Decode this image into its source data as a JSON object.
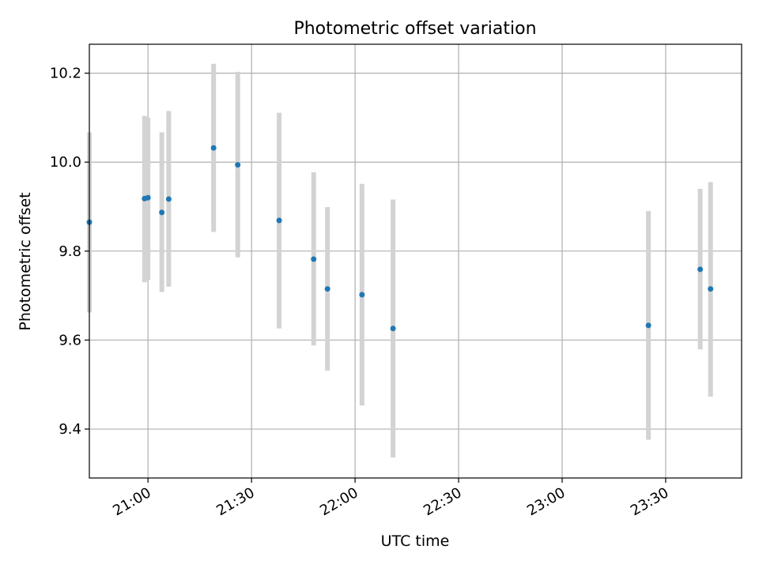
{
  "chart_data": {
    "type": "scatter",
    "title": "Photometric offset variation",
    "xlabel": "UTC time",
    "ylabel": "Photometric offset",
    "x_tick_labels": [
      "21:00",
      "21:30",
      "22:00",
      "22:30",
      "23:00",
      "23:30"
    ],
    "y_tick_labels": [
      "9.4",
      "9.6",
      "9.8",
      "10.0",
      "10.2"
    ],
    "xlim": [
      "20:43",
      "23:52"
    ],
    "ylim": [
      9.29,
      10.265
    ],
    "grid": true,
    "series": [
      {
        "points": [
          {
            "x": "20:43",
            "y": 9.865,
            "ylow": 9.662,
            "yhigh": 10.067
          },
          {
            "x": "20:59",
            "y": 9.918,
            "ylow": 9.73,
            "yhigh": 10.104
          },
          {
            "x": "21:00",
            "y": 9.92,
            "ylow": 9.735,
            "yhigh": 10.1
          },
          {
            "x": "21:04",
            "y": 9.887,
            "ylow": 9.708,
            "yhigh": 10.067
          },
          {
            "x": "21:06",
            "y": 9.917,
            "ylow": 9.72,
            "yhigh": 10.115
          },
          {
            "x": "21:19",
            "y": 10.032,
            "ylow": 9.843,
            "yhigh": 10.221
          },
          {
            "x": "21:26",
            "y": 9.994,
            "ylow": 9.786,
            "yhigh": 10.203
          },
          {
            "x": "21:38",
            "y": 9.869,
            "ylow": 9.626,
            "yhigh": 10.111
          },
          {
            "x": "21:48",
            "y": 9.782,
            "ylow": 9.588,
            "yhigh": 9.977
          },
          {
            "x": "21:52",
            "y": 9.715,
            "ylow": 9.531,
            "yhigh": 9.899
          },
          {
            "x": "22:02",
            "y": 9.702,
            "ylow": 9.453,
            "yhigh": 9.951
          },
          {
            "x": "22:11",
            "y": 9.626,
            "ylow": 9.336,
            "yhigh": 9.916
          },
          {
            "x": "23:25",
            "y": 9.633,
            "ylow": 9.376,
            "yhigh": 9.89
          },
          {
            "x": "23:40",
            "y": 9.759,
            "ylow": 9.579,
            "yhigh": 9.94
          },
          {
            "x": "23:43",
            "y": 9.715,
            "ylow": 9.473,
            "yhigh": 9.955
          }
        ]
      }
    ],
    "colors": {
      "point": "#1f77b4",
      "errorbar": "#d3d3d3",
      "grid": "#b0b0b0",
      "axes": "#000000"
    }
  }
}
